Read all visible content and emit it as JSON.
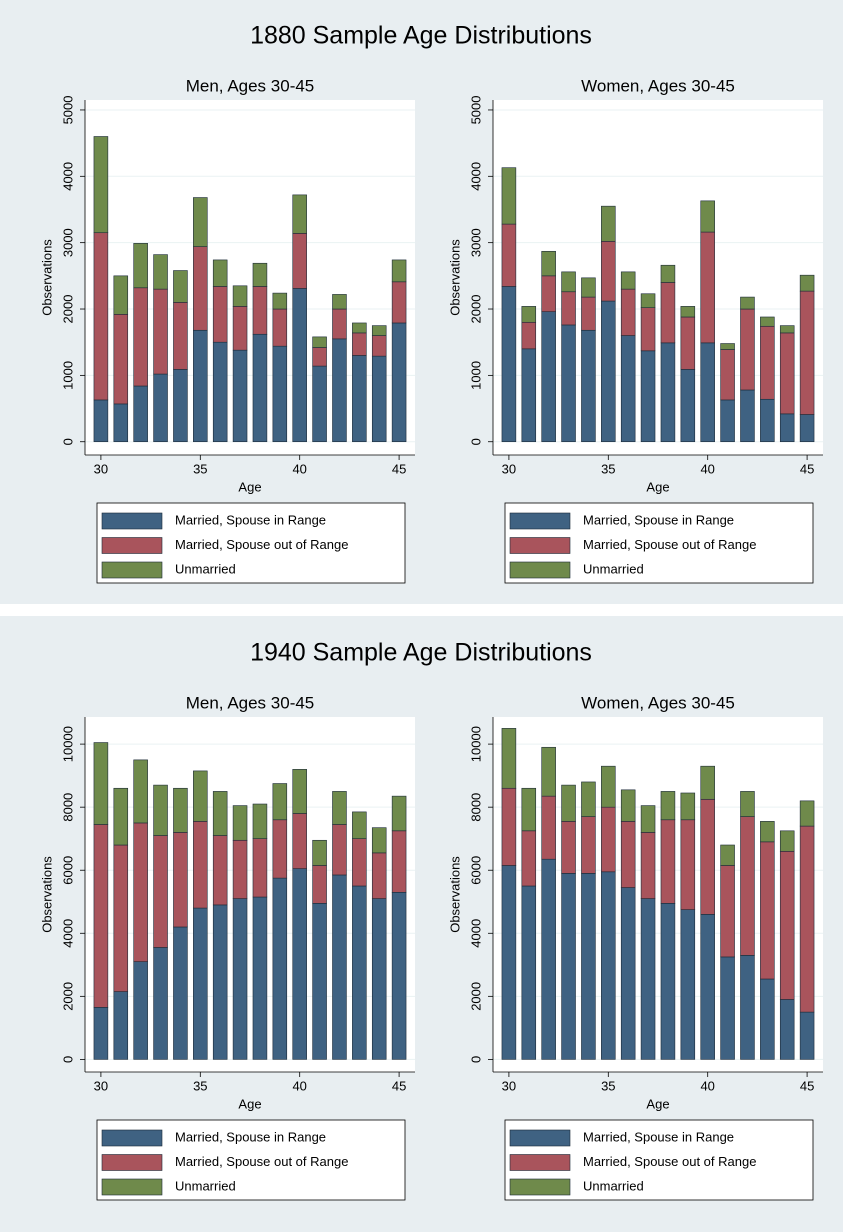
{
  "figure_titles": [
    "1880 Sample Age Distributions",
    "1940 Sample Age Distributions"
  ],
  "chart_data": [
    {
      "type": "bar",
      "stacked": true,
      "title": "Men, Ages 30-45",
      "x_label": "Age",
      "y_label": "Observations",
      "x": [
        30,
        31,
        32,
        33,
        34,
        35,
        36,
        37,
        38,
        39,
        40,
        41,
        42,
        43,
        44,
        45
      ],
      "xlim": [
        29.2,
        45.8
      ],
      "xticks": [
        30,
        35,
        40,
        45
      ],
      "ylim": [
        -200,
        5150
      ],
      "yticks": [
        0,
        1000,
        2000,
        3000,
        4000,
        5000
      ],
      "series": [
        {
          "name": "Married, Spouse in Range",
          "color": "#3f6282",
          "values": [
            630,
            570,
            840,
            1020,
            1090,
            1680,
            1500,
            1380,
            1620,
            1440,
            2310,
            1140,
            1550,
            1300,
            1290,
            1790
          ]
        },
        {
          "name": "Married, Spouse out of Range",
          "color": "#a9545c",
          "values": [
            2520,
            1350,
            1480,
            1280,
            1010,
            1260,
            840,
            660,
            720,
            560,
            830,
            280,
            450,
            340,
            310,
            620
          ]
        },
        {
          "name": "Unmarried",
          "color": "#6f8a4b",
          "values": [
            1450,
            580,
            670,
            520,
            480,
            740,
            400,
            310,
            350,
            240,
            580,
            160,
            220,
            150,
            150,
            330
          ]
        }
      ]
    },
    {
      "type": "bar",
      "stacked": true,
      "title": "Women, Ages 30-45",
      "x_label": "Age",
      "y_label": "Observations",
      "x": [
        30,
        31,
        32,
        33,
        34,
        35,
        36,
        37,
        38,
        39,
        40,
        41,
        42,
        43,
        44,
        45
      ],
      "xlim": [
        29.2,
        45.8
      ],
      "xticks": [
        30,
        35,
        40,
        45
      ],
      "ylim": [
        -200,
        5150
      ],
      "yticks": [
        0,
        1000,
        2000,
        3000,
        4000,
        5000
      ],
      "series": [
        {
          "name": "Married, Spouse in Range",
          "color": "#3f6282",
          "values": [
            2340,
            1400,
            1960,
            1760,
            1680,
            2120,
            1600,
            1370,
            1490,
            1090,
            1490,
            630,
            780,
            640,
            420,
            410
          ]
        },
        {
          "name": "Married, Spouse out of Range",
          "color": "#a9545c",
          "values": [
            940,
            400,
            540,
            500,
            500,
            900,
            700,
            650,
            910,
            790,
            1670,
            760,
            1220,
            1100,
            1220,
            1860
          ]
        },
        {
          "name": "Unmarried",
          "color": "#6f8a4b",
          "values": [
            850,
            240,
            370,
            300,
            290,
            530,
            260,
            210,
            260,
            160,
            470,
            90,
            180,
            140,
            110,
            240
          ]
        }
      ]
    },
    {
      "type": "bar",
      "stacked": true,
      "title": "Men, Ages 30-45",
      "x_label": "Age",
      "y_label": "Observations",
      "x": [
        30,
        31,
        32,
        33,
        34,
        35,
        36,
        37,
        38,
        39,
        40,
        41,
        42,
        43,
        44,
        45
      ],
      "xlim": [
        29.2,
        45.8
      ],
      "xticks": [
        30,
        35,
        40,
        45
      ],
      "ylim": [
        -400,
        10860
      ],
      "yticks": [
        0,
        2000,
        4000,
        6000,
        8000,
        10000
      ],
      "series": [
        {
          "name": "Married, Spouse in Range",
          "color": "#3f6282",
          "values": [
            1650,
            2150,
            3100,
            3550,
            4200,
            4800,
            4900,
            5100,
            5150,
            5750,
            6050,
            4950,
            5850,
            5500,
            5100,
            5300
          ]
        },
        {
          "name": "Married, Spouse out of Range",
          "color": "#a9545c",
          "values": [
            5800,
            4650,
            4400,
            3550,
            3000,
            2750,
            2200,
            1850,
            1850,
            1850,
            1750,
            1200,
            1600,
            1500,
            1450,
            1950
          ]
        },
        {
          "name": "Unmarried",
          "color": "#6f8a4b",
          "values": [
            2600,
            1800,
            2000,
            1600,
            1400,
            1600,
            1400,
            1100,
            1100,
            1150,
            1400,
            800,
            1050,
            850,
            800,
            1100
          ]
        }
      ]
    },
    {
      "type": "bar",
      "stacked": true,
      "title": "Women, Ages 30-45",
      "x_label": "Age",
      "y_label": "Observations",
      "x": [
        30,
        31,
        32,
        33,
        34,
        35,
        36,
        37,
        38,
        39,
        40,
        41,
        42,
        43,
        44,
        45
      ],
      "xlim": [
        29.2,
        45.8
      ],
      "xticks": [
        30,
        35,
        40,
        45
      ],
      "ylim": [
        -400,
        10860
      ],
      "yticks": [
        0,
        2000,
        4000,
        6000,
        8000,
        10000
      ],
      "series": [
        {
          "name": "Married, Spouse in Range",
          "color": "#3f6282",
          "values": [
            6150,
            5500,
            6350,
            5900,
            5900,
            5950,
            5450,
            5100,
            4950,
            4750,
            4600,
            3250,
            3300,
            2550,
            1900,
            1500
          ]
        },
        {
          "name": "Married, Spouse out of Range",
          "color": "#a9545c",
          "values": [
            2450,
            1750,
            2000,
            1650,
            1800,
            2050,
            2100,
            2100,
            2650,
            2850,
            3650,
            2900,
            4400,
            4350,
            4700,
            5900
          ]
        },
        {
          "name": "Unmarried",
          "color": "#6f8a4b",
          "values": [
            1900,
            1350,
            1550,
            1150,
            1100,
            1300,
            1000,
            850,
            900,
            850,
            1050,
            650,
            800,
            650,
            650,
            800
          ]
        }
      ]
    }
  ]
}
